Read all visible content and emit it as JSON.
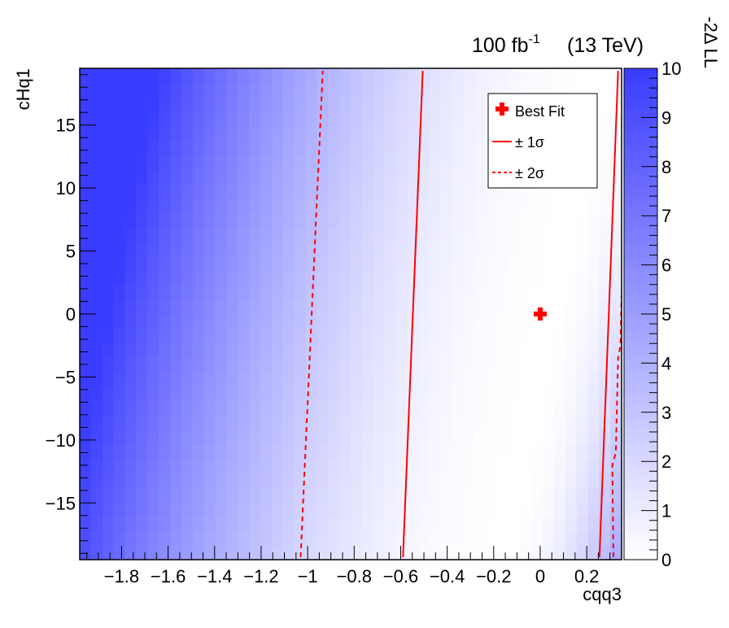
{
  "chart_data": {
    "type": "heatmap",
    "header": {
      "lumi": "100 fb",
      "lumi_exp": "-1",
      "energy": "(13 TeV)"
    },
    "xlabel": "cqq3",
    "ylabel": "cHq1",
    "colorbar_label": "-2Δ LL",
    "xlim": [
      -1.98,
      0.35
    ],
    "ylim": [
      -19.5,
      19.5
    ],
    "zlim": [
      0,
      10
    ],
    "x_ticks": [
      -1.8,
      -1.6,
      -1.4,
      -1.2,
      -1,
      -0.8,
      -0.6,
      -0.4,
      -0.2,
      0,
      0.2
    ],
    "x_tick_labels": [
      "−1.8",
      "−1.6",
      "−1.4",
      "−1.2",
      "−1",
      "−0.8",
      "−0.6",
      "−0.4",
      "−0.2",
      "0",
      "0.2"
    ],
    "y_ticks": [
      -15,
      -10,
      -5,
      0,
      5,
      10,
      15
    ],
    "y_tick_labels": [
      "−15",
      "−10",
      "−5",
      "0",
      "5",
      "10",
      "15"
    ],
    "z_ticks": [
      0,
      1,
      2,
      3,
      4,
      5,
      6,
      7,
      8,
      9,
      10
    ],
    "z_tick_labels": [
      "0",
      "1",
      "2",
      "3",
      "4",
      "5",
      "6",
      "7",
      "8",
      "9",
      "10"
    ],
    "colors": {
      "low": "#ffffff",
      "high": "#3a3cff",
      "contour": "#ff0000"
    },
    "best_fit": {
      "x": 0.0,
      "y": 0.0
    },
    "sigma1": [
      {
        "name": "left",
        "points": [
          [
            -0.59,
            -19.3
          ],
          [
            -0.505,
            19.3
          ]
        ]
      },
      {
        "name": "right",
        "points": [
          [
            0.255,
            -19.3
          ],
          [
            0.335,
            19.3
          ]
        ]
      }
    ],
    "sigma2": [
      {
        "name": "left",
        "points": [
          [
            -1.03,
            -19.3
          ],
          [
            -0.935,
            19.3
          ]
        ]
      },
      {
        "name": "right",
        "points": [
          [
            0.315,
            -19.3
          ],
          [
            0.31,
            -12.0
          ],
          [
            0.325,
            -11.0
          ],
          [
            0.335,
            -3.5
          ],
          [
            0.345,
            -2.5
          ],
          [
            0.35,
            1.5
          ]
        ]
      }
    ],
    "legend": {
      "position": "top-right",
      "entries": [
        {
          "label": "Best Fit",
          "style": "cross"
        },
        {
          "label": "± 1σ",
          "style": "solid"
        },
        {
          "label": "± 2σ",
          "style": "dashed"
        }
      ]
    }
  }
}
